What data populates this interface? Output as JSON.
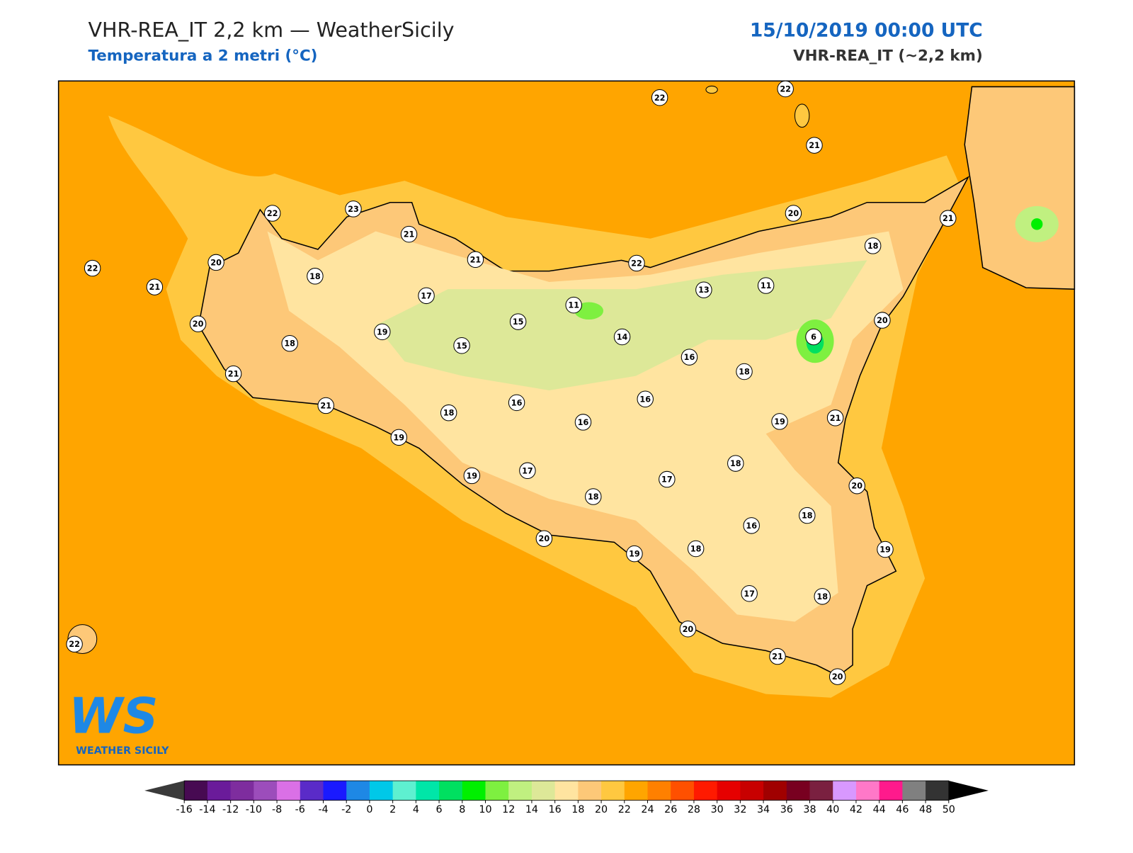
{
  "header": {
    "title": "VHR-REA_IT 2,2 km — WeatherSicily",
    "subtitle": "Temperatura a 2 metri (°C)",
    "datetime": "15/10/2019 00:00 UTC",
    "model": "VHR-REA_IT (~2,2 km)"
  },
  "map": {
    "station_values": [
      22,
      22,
      21,
      22,
      23,
      21,
      21,
      22,
      20,
      21,
      18,
      22,
      20,
      21,
      18,
      17,
      11,
      13,
      11,
      20,
      19,
      15,
      14,
      6,
      20,
      18,
      15,
      16,
      18,
      21,
      21,
      16,
      16,
      16,
      18,
      19,
      21,
      19,
      18,
      19,
      17,
      17,
      20,
      18,
      18,
      16,
      20,
      19,
      18,
      19,
      17,
      18,
      20,
      21,
      20,
      22
    ]
  },
  "logo": {
    "mark": "WS",
    "name": "WEATHER SICILY"
  },
  "colorbar": {
    "ticks": [
      -16,
      -14,
      -12,
      -10,
      -8,
      -6,
      -4,
      -2,
      0,
      2,
      4,
      6,
      8,
      10,
      12,
      14,
      16,
      18,
      20,
      22,
      24,
      26,
      28,
      30,
      32,
      34,
      36,
      38,
      40,
      42,
      44,
      46,
      48,
      50
    ],
    "colors": [
      "#470a52",
      "#6a1b9a",
      "#7e2d9e",
      "#9c4dbb",
      "#da70e6",
      "#5a2bc8",
      "#1a1aff",
      "#1e88e5",
      "#00c8e8",
      "#5ef0d0",
      "#00e6a8",
      "#00e060",
      "#00f000",
      "#7ef040",
      "#c0f080",
      "#dde898",
      "#ffe4a0",
      "#fdc878",
      "#ffc840",
      "#ffa500",
      "#ff8000",
      "#ff5000",
      "#ff1a00",
      "#e60000",
      "#c80000",
      "#a00000",
      "#780020",
      "#7a2040",
      "#d898ff",
      "#ff78c8",
      "#ff1a8c",
      "#808080",
      "#333333"
    ],
    "under_color": "#3a3a3a",
    "over_color": "#000000"
  }
}
